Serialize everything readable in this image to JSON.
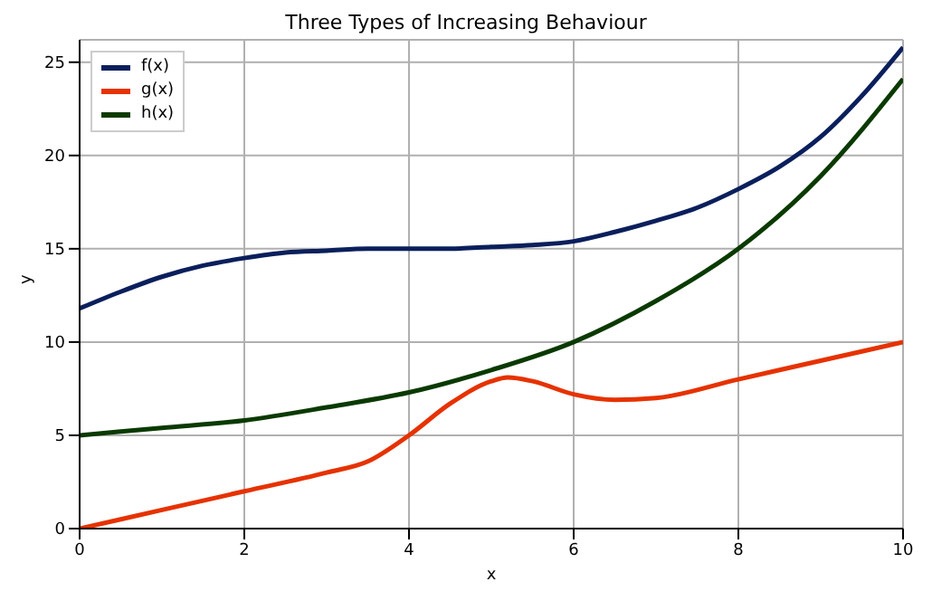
{
  "chart_data": {
    "type": "line",
    "title": "Three Types of Increasing Behaviour",
    "xlabel": "x",
    "ylabel": "y",
    "xlim": [
      0,
      10
    ],
    "ylim": [
      0,
      26.2
    ],
    "xticks": [
      0,
      2,
      4,
      6,
      8,
      10
    ],
    "yticks": [
      0,
      5,
      10,
      15,
      20,
      25
    ],
    "grid": true,
    "legend": "top left",
    "series": [
      {
        "name": "f(x)",
        "color": "#0a1f5c",
        "x": [
          0,
          0.5,
          1,
          1.5,
          2,
          2.5,
          3,
          3.5,
          4,
          4.5,
          5,
          5.5,
          6,
          6.5,
          7,
          7.5,
          8,
          8.5,
          9,
          9.5,
          10
        ],
        "values": [
          11.8,
          12.7,
          13.5,
          14.1,
          14.5,
          14.8,
          14.9,
          15,
          15,
          15,
          15.1,
          15.2,
          15.4,
          15.9,
          16.5,
          17.2,
          18.2,
          19.4,
          21,
          23.2,
          25.8
        ]
      },
      {
        "name": "g(x)",
        "color": "#e63200",
        "x": [
          0,
          1,
          2,
          3,
          3.5,
          4,
          4.5,
          5,
          5.2,
          5.5,
          6,
          6.5,
          7,
          8,
          9,
          10
        ],
        "values": [
          0,
          1,
          2,
          3,
          3.6,
          5,
          6.7,
          7.9,
          8.1,
          7.9,
          7.2,
          6.9,
          7,
          8,
          9,
          10
        ]
      },
      {
        "name": "h(x)",
        "color": "#0a3a00",
        "x": [
          0,
          1,
          2,
          3,
          4,
          5,
          6,
          7,
          8,
          9,
          10
        ],
        "values": [
          5,
          5.4,
          5.8,
          6.5,
          7.3,
          8.5,
          10,
          12.2,
          15,
          18.9,
          24.1
        ]
      }
    ]
  }
}
